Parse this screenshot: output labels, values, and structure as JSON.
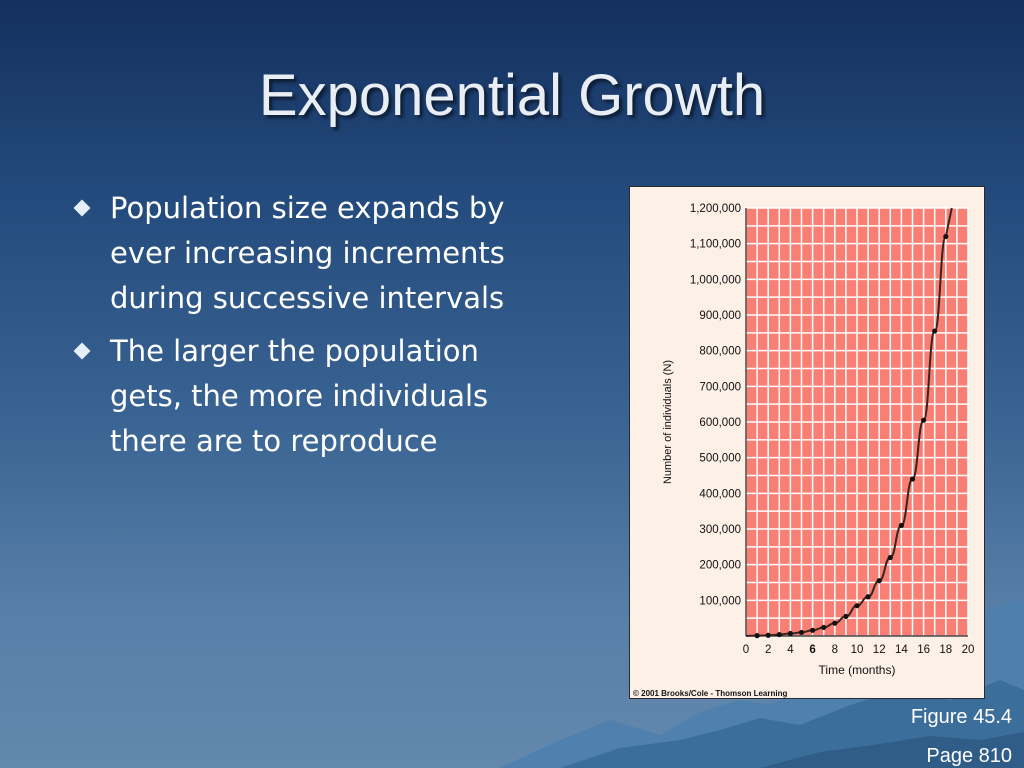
{
  "slide": {
    "title": "Exponential Growth",
    "bullets": [
      "Population size expands by ever increasing increments during successive intervals",
      "The larger the population gets, the more individuals there are to reproduce"
    ],
    "caption_figure": "Figure 45.4",
    "caption_page": "Page 810"
  },
  "chart_data": {
    "type": "line",
    "xlabel": "Time (months)",
    "ylabel": "Number of individuals (N)",
    "x_ticks": [
      "0",
      "2",
      "4",
      "6",
      "8",
      "10",
      "12",
      "14",
      "16",
      "18",
      "20"
    ],
    "y_ticks": [
      "100,000",
      "200,000",
      "300,000",
      "400,000",
      "500,000",
      "600,000",
      "700,000",
      "800,000",
      "900,000",
      "1,000,000",
      "1,100,000",
      "1,200,000"
    ],
    "xlim": [
      0,
      20
    ],
    "ylim": [
      0,
      1200000
    ],
    "grid": true,
    "copyright": "© 2001 Brooks/Cole - Thomson Learning",
    "colors": {
      "plot_bg": "#f97f74",
      "grid": "#ffffff",
      "frame_bg": "#fdf0e6",
      "curve": "#3a2420",
      "points": "#111111"
    },
    "series": [
      {
        "x": [
          1,
          2,
          3,
          4,
          5,
          6,
          7,
          8,
          9,
          10,
          11,
          12,
          13,
          14,
          15,
          16,
          17,
          18
        ],
        "values": [
          1000,
          2000,
          4000,
          7000,
          10000,
          16000,
          24000,
          36000,
          55000,
          85000,
          110000,
          155000,
          220000,
          310000,
          440000,
          605000,
          855000,
          1120000
        ]
      }
    ]
  }
}
